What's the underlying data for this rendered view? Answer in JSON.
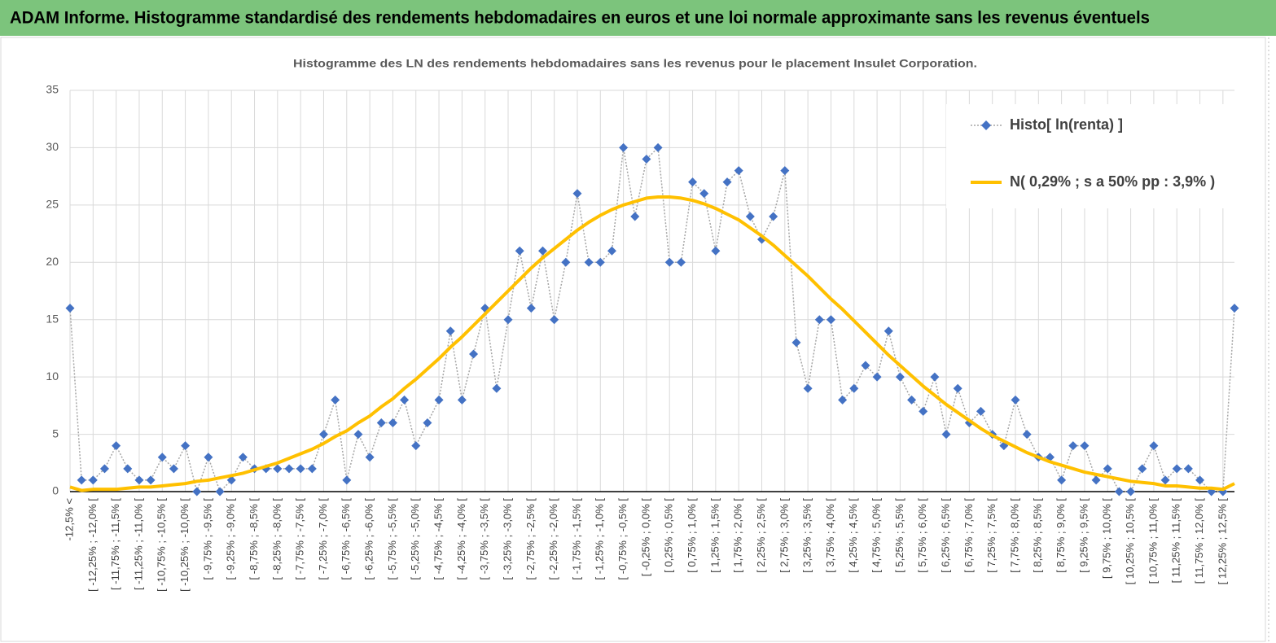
{
  "header": {
    "title": "ADAM Informe. Histogramme standardisé des rendements hebdomadaires en euros et une loi normale approximante sans les revenus éventuels"
  },
  "chart_data": {
    "type": "line",
    "title": "Histogramme des LN des rendements hebdomadaires sans les revenus pour le placement Insulet Corporation.",
    "categories": [
      "-12,5% <",
      null,
      "[ -12,25% ; -12,0% [",
      null,
      "[ -11,75% ; -11,5% [",
      null,
      "[ -11,25% ; -11,0% [",
      null,
      "[ -10,75% ; -10,5% [",
      null,
      "[ -10,25% ; -10,0% [",
      null,
      "[ -9,75% ; -9,5% [",
      null,
      "[ -9,25% ; -9,0% [",
      null,
      "[ -8,75% ; -8,5% [",
      null,
      "[ -8,25% ; -8,0% [",
      null,
      "[ -7,75% ; -7,5% [",
      null,
      "[ -7,25% ; -7,0% [",
      null,
      "[ -6,75% ; -6,5% [",
      null,
      "[ -6,25% ; -6,0% [",
      null,
      "[ -5,75% ; -5,5% [",
      null,
      "[ -5,25% ; -5,0% [",
      null,
      "[ -4,75% ; -4,5% [",
      null,
      "[ -4,25% ; -4,0% [",
      null,
      "[ -3,75% ; -3,5% [",
      null,
      "[ -3,25% ; -3,0% [",
      null,
      "[ -2,75% ; -2,5% [",
      null,
      "[ -2,25% ; -2,0% [",
      null,
      "[ -1,75% ; -1,5% [",
      null,
      "[ -1,25% ; -1,0% [",
      null,
      "[ -0,75% ; -0,5% [",
      null,
      "[ -0,25% ; 0,0% [",
      null,
      "[ 0,25% ; 0,5% [",
      null,
      "[ 0,75% ; 1,0% [",
      null,
      "[ 1,25% ; 1,5% [",
      null,
      "[ 1,75% ; 2,0% [",
      null,
      "[ 2,25% ; 2,5% [",
      null,
      "[ 2,75% ; 3,0% [",
      null,
      "[ 3,25% ; 3,5% [",
      null,
      "[ 3,75% ; 4,0% [",
      null,
      "[ 4,25% ; 4,5% [",
      null,
      "[ 4,75% ; 5,0% [",
      null,
      "[ 5,25% ; 5,5% [",
      null,
      "[ 5,75% ; 6,0% [",
      null,
      "[ 6,25% ; 6,5% [",
      null,
      "[ 6,75% ; 7,0% [",
      null,
      "[ 7,25% ; 7,5% [",
      null,
      "[ 7,75% ; 8,0% [",
      null,
      "[ 8,25% ; 8,5% [",
      null,
      "[ 8,75% ; 9,0% [",
      null,
      "[ 9,25% ; 9,5% [",
      null,
      "[ 9,75% ; 10,0% [",
      null,
      "[ 10,25% ; 10,5% [",
      null,
      "[ 10,75% ; 11,0% [",
      null,
      "[ 11,25% ; 11,5% [",
      null,
      "[ 11,75% ; 12,0% [",
      null,
      "[ 12,25% ; 12,5% [",
      null
    ],
    "series": [
      {
        "name": "Histo[ ln(renta) ]",
        "color": "#4472c4",
        "line_color": "#a6a6a6",
        "line_style": "dotted",
        "marker": "diamond",
        "values": [
          16,
          1,
          1,
          2,
          4,
          2,
          1,
          1,
          3,
          2,
          4,
          0,
          3,
          0,
          1,
          3,
          2,
          2,
          2,
          2,
          2,
          2,
          5,
          8,
          1,
          5,
          3,
          6,
          6,
          8,
          4,
          6,
          8,
          14,
          8,
          12,
          16,
          9,
          15,
          21,
          16,
          21,
          15,
          20,
          26,
          20,
          20,
          21,
          30,
          24,
          29,
          30,
          20,
          20,
          27,
          26,
          21,
          27,
          28,
          24,
          22,
          24,
          28,
          13,
          9,
          15,
          15,
          8,
          9,
          11,
          10,
          14,
          10,
          8,
          7,
          10,
          5,
          9,
          6,
          7,
          5,
          4,
          8,
          5,
          3,
          3,
          1,
          4,
          4,
          1,
          2,
          0,
          0,
          2,
          4,
          1,
          2,
          2,
          1,
          0,
          0,
          16
        ]
      },
      {
        "name": "N( 0,29% ; s a 50% pp : 3,9% )",
        "color": "#ffc000",
        "line_style": "solid",
        "values": [
          0.4,
          0.1,
          0.2,
          0.2,
          0.2,
          0.3,
          0.4,
          0.4,
          0.5,
          0.6,
          0.7,
          0.9,
          1.0,
          1.2,
          1.4,
          1.6,
          1.9,
          2.2,
          2.5,
          2.9,
          3.3,
          3.7,
          4.2,
          4.8,
          5.3,
          6.0,
          6.6,
          7.4,
          8.1,
          9.0,
          9.8,
          10.7,
          11.6,
          12.6,
          13.5,
          14.5,
          15.5,
          16.5,
          17.5,
          18.5,
          19.5,
          20.4,
          21.2,
          22.0,
          22.8,
          23.5,
          24.1,
          24.6,
          25.0,
          25.3,
          25.6,
          25.7,
          25.7,
          25.6,
          25.4,
          25.1,
          24.7,
          24.2,
          23.7,
          23.0,
          22.3,
          21.5,
          20.6,
          19.7,
          18.8,
          17.8,
          16.8,
          15.9,
          14.9,
          13.9,
          12.9,
          11.9,
          11.0,
          10.1,
          9.2,
          8.4,
          7.6,
          6.9,
          6.2,
          5.5,
          4.9,
          4.4,
          3.9,
          3.4,
          3.0,
          2.6,
          2.3,
          2.0,
          1.7,
          1.5,
          1.3,
          1.1,
          0.9,
          0.8,
          0.7,
          0.5,
          0.5,
          0.4,
          0.3,
          0.3,
          0.2,
          0.7
        ]
      }
    ],
    "ylim": [
      0,
      35
    ],
    "yticks": [
      0,
      5,
      10,
      15,
      20,
      25,
      30,
      35
    ],
    "grid": true,
    "legend": "upper right"
  }
}
